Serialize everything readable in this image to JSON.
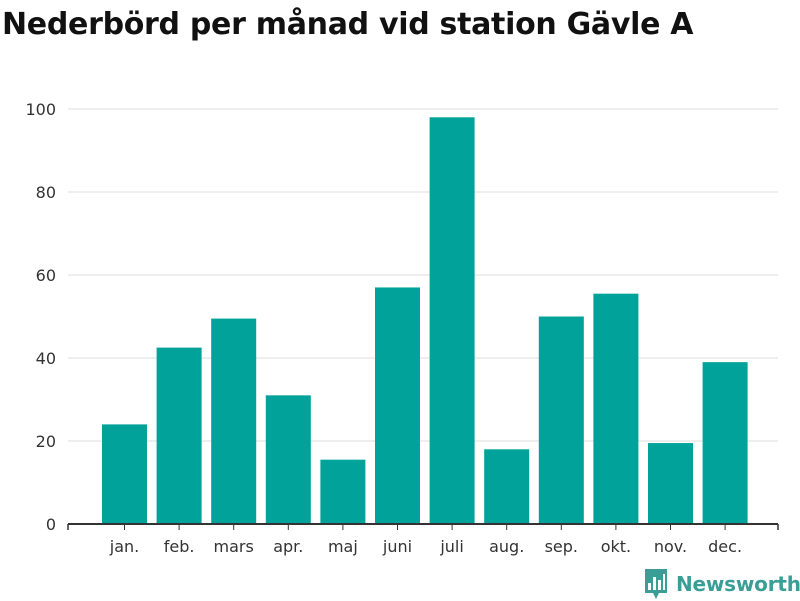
{
  "title": "Nederbörd per månad vid station Gävle A",
  "brand": {
    "name": "Newsworthy",
    "logo_icon": "newsworthy-chart-icon"
  },
  "colors": {
    "bar": "#00A29A",
    "grid": "#DDDDDD",
    "axis": "#333333",
    "brand": "#3A9E97"
  },
  "chart_data": {
    "type": "bar",
    "title": "Nederbörd per månad vid station Gävle A",
    "xlabel": "",
    "ylabel": "",
    "categories": [
      "jan.",
      "feb.",
      "mars",
      "apr.",
      "maj",
      "juni",
      "juli",
      "aug.",
      "sep.",
      "okt.",
      "nov.",
      "dec."
    ],
    "values": [
      24,
      42.5,
      49.5,
      31,
      15.5,
      57,
      98,
      18,
      50,
      55.5,
      19.5,
      39
    ],
    "ylim": [
      0,
      100
    ],
    "yticks": [
      0,
      20,
      40,
      60,
      80,
      100
    ],
    "grid": true,
    "legend": "none"
  }
}
